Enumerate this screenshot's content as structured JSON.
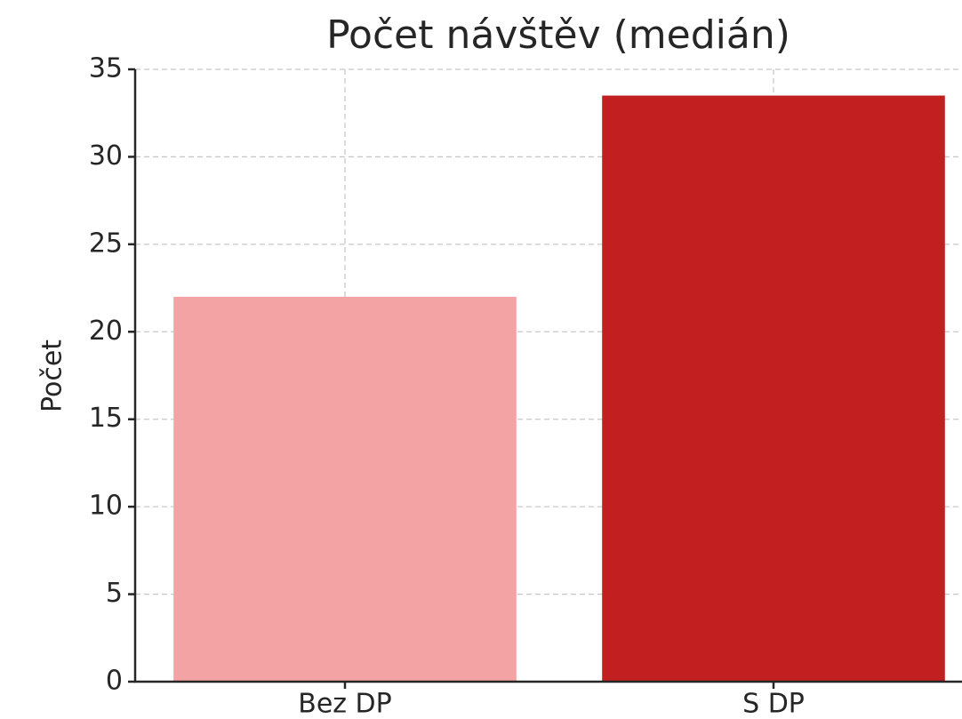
{
  "chart_data": {
    "type": "bar",
    "title": "Počet návštěv (medián)",
    "ylabel": "Počet",
    "categories": [
      "Bez DP",
      "S DP"
    ],
    "values": [
      22,
      33.5
    ],
    "colors": [
      "#f4a3a5",
      "#c21f20"
    ],
    "ylim": [
      0,
      35
    ],
    "yticks": [
      0,
      5,
      10,
      15,
      20,
      25,
      30,
      35
    ],
    "grid": true
  }
}
